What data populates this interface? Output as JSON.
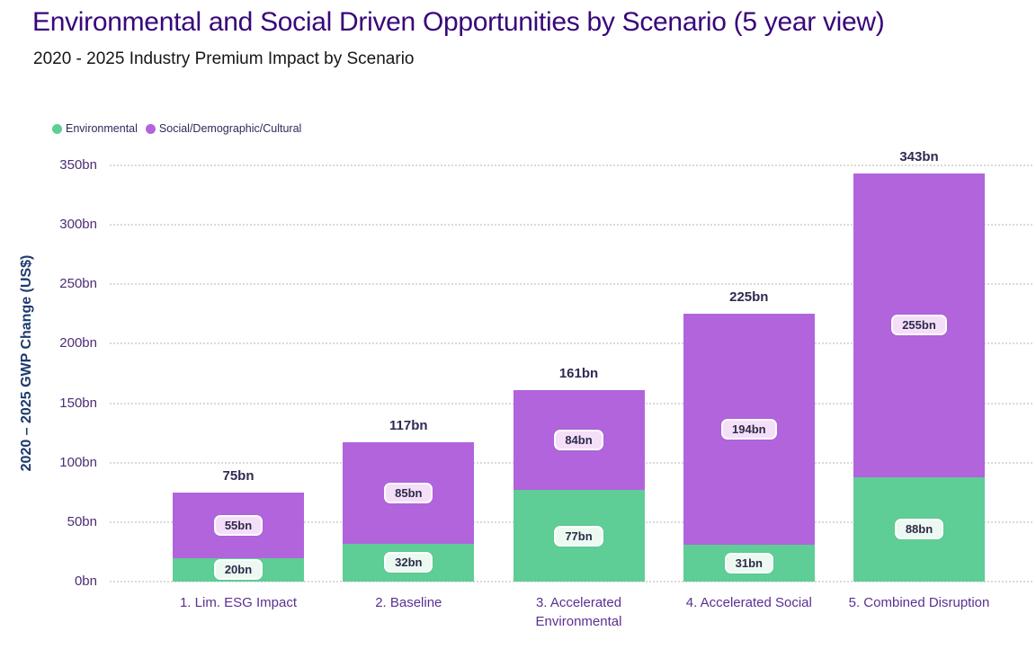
{
  "header": {
    "title": "Environmental and Social Driven Opportunities by Scenario (5 year view)",
    "subtitle": "2020 - 2025 Industry Premium Impact by Scenario"
  },
  "legend": {
    "items": [
      {
        "label": "Environmental",
        "color": "#5fcd96"
      },
      {
        "label": "Social/Demographic/Cultural",
        "color": "#b164dc"
      }
    ]
  },
  "chart_data": {
    "type": "bar",
    "stacked": true,
    "title": "2020 - 2025 Industry Premium Impact by Scenario",
    "xlabel": "",
    "ylabel": "2020 – 2025 GWP Change (US$)",
    "ylim": [
      0,
      350
    ],
    "y_ticks": [
      "0bn",
      "50bn",
      "100bn",
      "150bn",
      "200bn",
      "250bn",
      "300bn",
      "350bn"
    ],
    "grid": "horizontal-dotted",
    "legend_position": "top-left",
    "categories": [
      "1. Lim. ESG Impact",
      "2. Baseline",
      "3. Accelerated Environmental",
      "4. Accelerated Social",
      "5. Combined Disruption"
    ],
    "series": [
      {
        "name": "Environmental",
        "color": "#5fcd96",
        "values": [
          20,
          32,
          77,
          31,
          88
        ],
        "value_labels": [
          "20bn",
          "32bn",
          "77bn",
          "31bn",
          "88bn"
        ],
        "label_bg": "#ebf9f1"
      },
      {
        "name": "Social/Demographic/Cultural",
        "color": "#b164dc",
        "values": [
          55,
          85,
          84,
          194,
          255
        ],
        "value_labels": [
          "55bn",
          "85bn",
          "84bn",
          "194bn",
          "255bn"
        ],
        "label_bg": "#f4def8"
      }
    ],
    "totals": [
      75,
      117,
      161,
      225,
      343
    ],
    "total_labels": [
      "75bn",
      "117bn",
      "161bn",
      "225bn",
      "343bn"
    ]
  }
}
